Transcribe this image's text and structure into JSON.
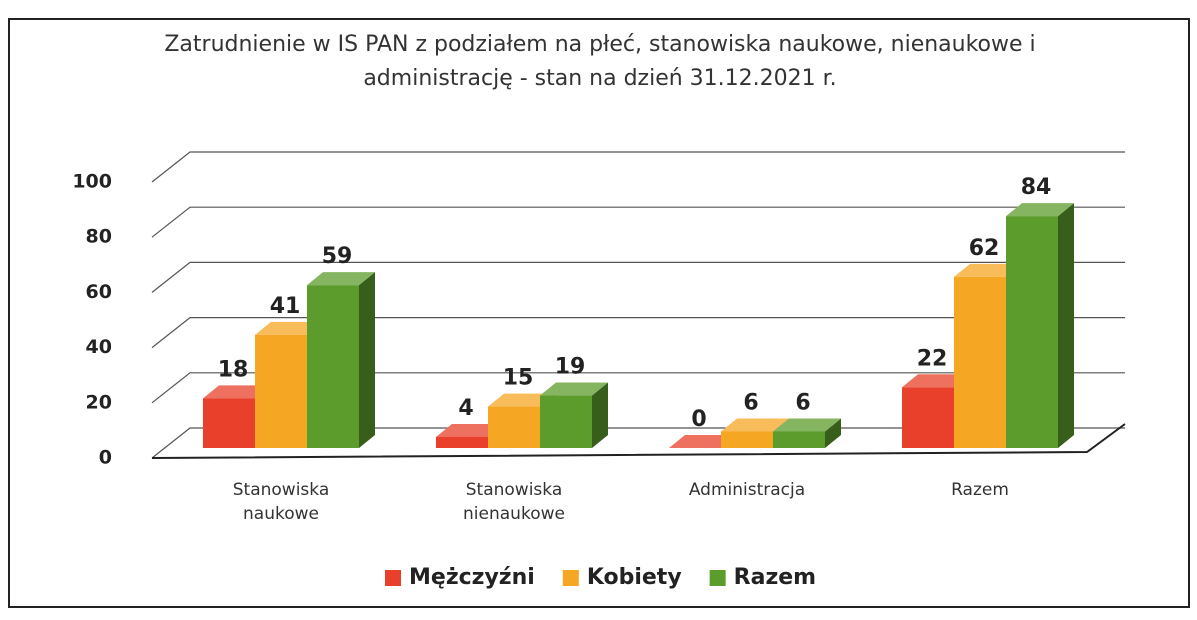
{
  "chart_data": {
    "type": "bar3d",
    "title": "Zatrudnienie w IS PAN z podziałem na płeć, stanowiska naukowe, nienaukowe i administrację - stan na dzień 31.12.2021 r.",
    "categories": [
      "Stanowiska naukowe",
      "Stanowiska nienaukowe",
      "Administracja",
      "Razem"
    ],
    "series": [
      {
        "name": "Mężczyźni",
        "color": "#e8402a",
        "values": [
          18,
          4,
          0,
          22
        ]
      },
      {
        "name": "Kobiety",
        "color": "#f5a623",
        "values": [
          41,
          15,
          6,
          62
        ]
      },
      {
        "name": "Razem",
        "color": "#5c9c2c",
        "values": [
          59,
          19,
          6,
          84
        ]
      }
    ],
    "ylim": [
      0,
      100
    ],
    "yticks": [
      0,
      20,
      40,
      60,
      80,
      100
    ],
    "grid": true,
    "legend": "bottom"
  }
}
